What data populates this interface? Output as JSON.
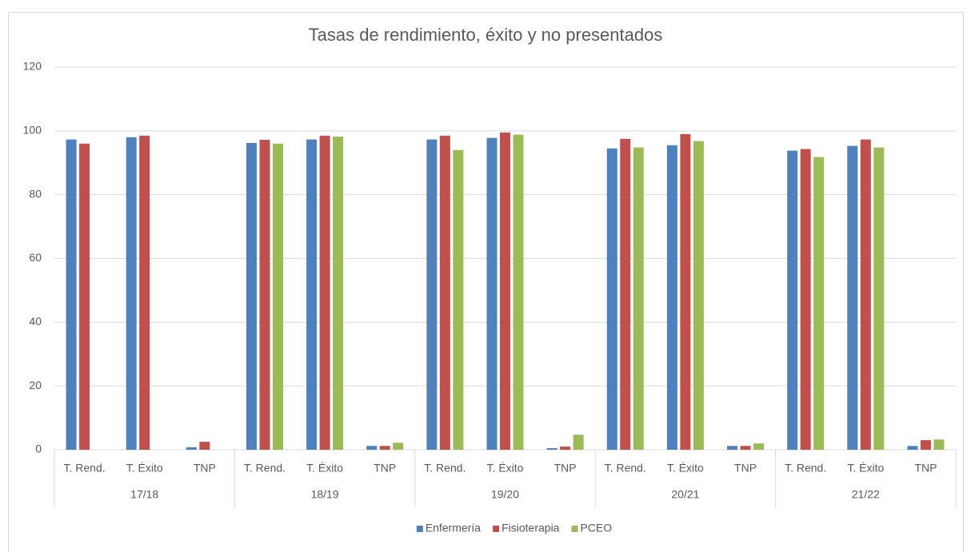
{
  "chart_data": {
    "type": "bar",
    "title": "Tasas de rendimiento, éxito y no presentados",
    "groups": [
      "17/18",
      "18/19",
      "19/20",
      "20/21",
      "21/22"
    ],
    "categories": [
      "T. Rend.",
      "T. Éxito",
      "TNP",
      "T. Rend.",
      "T. Éxito",
      "TNP",
      "T. Rend.",
      "T. Éxito",
      "TNP",
      "T. Rend.",
      "T. Éxito",
      "TNP",
      "T. Rend.",
      "T. Éxito",
      "TNP"
    ],
    "series": [
      {
        "name": "Enfermería",
        "color": "#4f81bd",
        "values": [
          97.3,
          98,
          0.8,
          96.2,
          97.3,
          1.2,
          97.3,
          97.8,
          0.5,
          94.5,
          95.5,
          1.2,
          93.8,
          95.3,
          1.2
        ]
      },
      {
        "name": "Fisioterapia",
        "color": "#c0504d",
        "values": [
          96,
          98.5,
          2.5,
          97.2,
          98.5,
          1.2,
          98.5,
          99.5,
          1,
          97.5,
          99,
          1.2,
          94.3,
          97.3,
          3
        ]
      },
      {
        "name": "PCEO",
        "color": "#9bbb59",
        "values": [
          null,
          null,
          null,
          96,
          98.2,
          2.2,
          94,
          98.8,
          4.7,
          94.8,
          96.8,
          2,
          91.8,
          94.8,
          3.2
        ]
      }
    ],
    "ylim": [
      0,
      120
    ],
    "yticks": [
      0,
      20,
      40,
      60,
      80,
      100,
      120
    ],
    "grid": true,
    "legend": "bottom"
  }
}
